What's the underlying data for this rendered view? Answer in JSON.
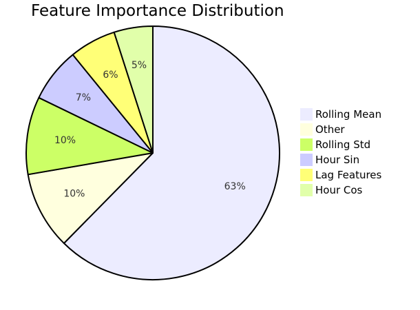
{
  "chart_data": {
    "type": "pie",
    "title": "Feature Importance Distribution",
    "legend_position": "right",
    "slices": [
      {
        "name": "Rolling Mean",
        "value": 63,
        "label": "63%",
        "color": "#ececff"
      },
      {
        "name": "Other",
        "value": 10,
        "label": "10%",
        "color": "#ffffde"
      },
      {
        "name": "Rolling Std",
        "value": 10,
        "label": "10%",
        "color": "#ccff66"
      },
      {
        "name": "Hour Sin",
        "value": 7,
        "label": "7%",
        "color": "#ccccff"
      },
      {
        "name": "Lag Features",
        "value": 6,
        "label": "6%",
        "color": "#ffff77"
      },
      {
        "name": "Hour Cos",
        "value": 5,
        "label": "5%",
        "color": "#e1ffaa"
      }
    ]
  }
}
